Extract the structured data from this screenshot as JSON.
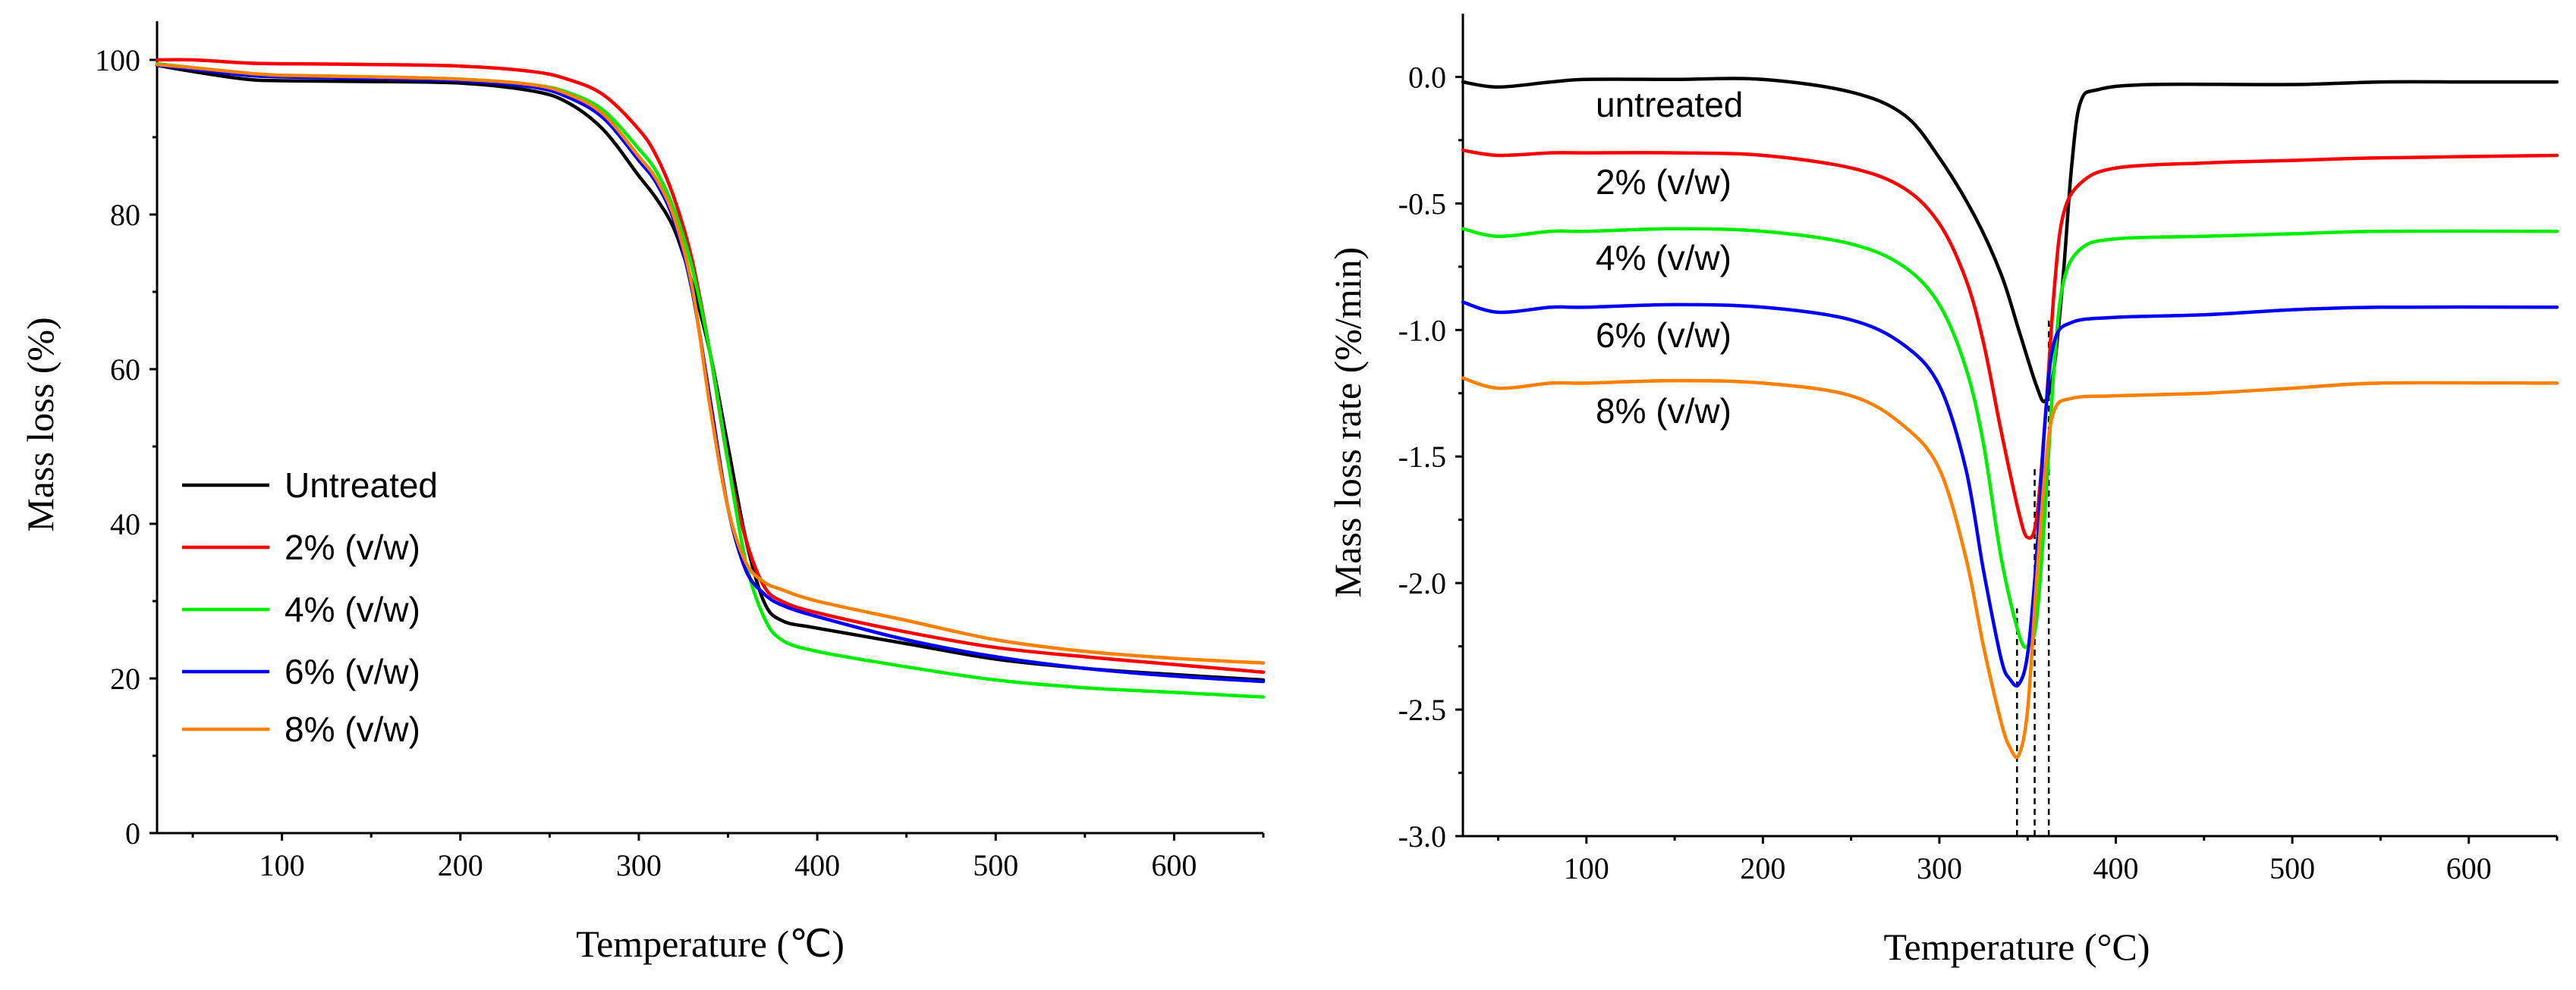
{
  "colors": {
    "untreated": "#000000",
    "c2": "#ff0000",
    "c4": "#00ee00",
    "c6": "#0000ff",
    "c8": "#ff8000"
  },
  "chart_data": [
    {
      "type": "line",
      "title": "",
      "xlabel": "Temperature (℃)",
      "ylabel": "Mass loss (%)",
      "xlim": [
        30,
        650
      ],
      "ylim": [
        0,
        105
      ],
      "x_ticks": [
        100,
        200,
        300,
        400,
        500,
        600
      ],
      "y_ticks": [
        0,
        20,
        40,
        60,
        80,
        100
      ],
      "grid": false,
      "legend_position": "lower-left",
      "series": [
        {
          "name": "Untreated",
          "color_key": "untreated",
          "x": [
            30,
            50,
            80,
            100,
            150,
            200,
            240,
            260,
            280,
            300,
            310,
            320,
            330,
            340,
            350,
            360,
            370,
            380,
            400,
            450,
            500,
            550,
            600,
            650
          ],
          "y": [
            99.3,
            98.5,
            97.5,
            97.3,
            97.2,
            97.0,
            96.0,
            94.5,
            91.0,
            85.0,
            82.0,
            78.0,
            71.0,
            62.0,
            50.0,
            38.0,
            30.0,
            27.5,
            26.5,
            24.5,
            22.5,
            21.3,
            20.5,
            19.8
          ]
        },
        {
          "name": "2% (v/w)",
          "color_key": "c2",
          "x": [
            30,
            50,
            80,
            100,
            150,
            200,
            240,
            260,
            280,
            300,
            310,
            320,
            330,
            340,
            350,
            360,
            370,
            380,
            400,
            450,
            500,
            550,
            600,
            650
          ],
          "y": [
            100.0,
            100.0,
            99.6,
            99.5,
            99.4,
            99.2,
            98.5,
            97.5,
            95.5,
            91.0,
            87.5,
            82.0,
            74.0,
            62.0,
            48.0,
            38.0,
            32.0,
            30.0,
            28.5,
            26.0,
            24.0,
            22.8,
            21.8,
            20.8
          ]
        },
        {
          "name": "4% (v/w)",
          "color_key": "c4",
          "x": [
            30,
            50,
            80,
            100,
            150,
            200,
            240,
            260,
            280,
            300,
            310,
            320,
            330,
            340,
            350,
            360,
            370,
            380,
            400,
            450,
            500,
            550,
            600,
            650
          ],
          "y": [
            99.5,
            99.0,
            98.2,
            98.0,
            97.8,
            97.5,
            96.8,
            95.8,
            93.5,
            88.5,
            85.5,
            80.5,
            73.0,
            62.0,
            48.0,
            35.0,
            28.0,
            25.0,
            23.5,
            21.5,
            19.8,
            18.8,
            18.2,
            17.6
          ]
        },
        {
          "name": "6% (v/w)",
          "color_key": "c6",
          "x": [
            30,
            50,
            80,
            100,
            150,
            200,
            240,
            260,
            280,
            300,
            310,
            320,
            330,
            340,
            350,
            360,
            370,
            380,
            400,
            450,
            500,
            550,
            600,
            650
          ],
          "y": [
            99.3,
            98.8,
            98.0,
            97.8,
            97.6,
            97.3,
            96.5,
            95.2,
            92.5,
            87.0,
            84.0,
            79.0,
            70.0,
            56.0,
            42.0,
            34.0,
            31.0,
            29.5,
            28.0,
            25.0,
            22.8,
            21.3,
            20.3,
            19.6
          ]
        },
        {
          "name": "8% (v/w)",
          "color_key": "c8",
          "x": [
            30,
            50,
            80,
            100,
            150,
            200,
            240,
            260,
            280,
            300,
            310,
            320,
            330,
            340,
            350,
            360,
            370,
            380,
            400,
            450,
            500,
            550,
            600,
            650
          ],
          "y": [
            99.4,
            99.0,
            98.3,
            98.0,
            97.8,
            97.5,
            96.8,
            95.6,
            93.0,
            87.5,
            84.5,
            79.5,
            70.5,
            55.0,
            42.0,
            35.0,
            32.5,
            31.5,
            30.0,
            27.5,
            25.0,
            23.5,
            22.6,
            22.0
          ]
        }
      ]
    },
    {
      "type": "line",
      "title": "",
      "xlabel": "Temperature (°C)",
      "ylabel": "Mass loss rate (%/min)",
      "xlim": [
        30,
        650
      ],
      "ylim": [
        -3.0,
        0.25
      ],
      "x_ticks": [
        100,
        200,
        300,
        400,
        500,
        600
      ],
      "y_ticks": [
        0.0,
        -0.5,
        -1.0,
        -1.5,
        -2.0,
        -2.5,
        -3.0
      ],
      "y_tick_labels": [
        "0.0",
        "-0.5",
        "-1.0",
        "-1.5",
        "-2.0",
        "-2.5",
        "-3.0"
      ],
      "grid": false,
      "legend_position": "inline labels",
      "series": [
        {
          "name": "untreated",
          "color_key": "untreated",
          "x": [
            30,
            50,
            80,
            100,
            150,
            200,
            250,
            280,
            300,
            320,
            335,
            345,
            355,
            360,
            365,
            370,
            375,
            380,
            390,
            420,
            500,
            550,
            600,
            650
          ],
          "y": [
            -0.02,
            -0.04,
            -0.02,
            -0.01,
            -0.01,
            -0.01,
            -0.06,
            -0.15,
            -0.32,
            -0.55,
            -0.78,
            -1.0,
            -1.22,
            -1.28,
            -1.15,
            -0.8,
            -0.35,
            -0.1,
            -0.05,
            -0.03,
            -0.03,
            -0.02,
            -0.02,
            -0.02
          ]
        },
        {
          "name": "2% (v/w)",
          "color_key": "c2",
          "x": [
            30,
            50,
            80,
            100,
            150,
            200,
            250,
            280,
            300,
            315,
            325,
            335,
            345,
            350,
            355,
            360,
            365,
            370,
            380,
            400,
            450,
            500,
            550,
            650
          ],
          "y": [
            -0.29,
            -0.31,
            -0.3,
            -0.3,
            -0.3,
            -0.31,
            -0.36,
            -0.44,
            -0.58,
            -0.8,
            -1.05,
            -1.4,
            -1.72,
            -1.82,
            -1.75,
            -1.35,
            -0.85,
            -0.55,
            -0.42,
            -0.36,
            -0.34,
            -0.33,
            -0.32,
            -0.31
          ]
        },
        {
          "name": "4% (v/w)",
          "color_key": "c4",
          "x": [
            30,
            50,
            80,
            100,
            150,
            200,
            250,
            280,
            300,
            315,
            325,
            335,
            345,
            350,
            355,
            360,
            365,
            370,
            380,
            400,
            450,
            500,
            550,
            650
          ],
          "y": [
            -0.6,
            -0.63,
            -0.61,
            -0.61,
            -0.6,
            -0.61,
            -0.66,
            -0.75,
            -0.9,
            -1.15,
            -1.45,
            -1.9,
            -2.2,
            -2.25,
            -2.15,
            -1.7,
            -1.15,
            -0.82,
            -0.68,
            -0.64,
            -0.63,
            -0.62,
            -0.61,
            -0.61
          ]
        },
        {
          "name": "6% (v/w)",
          "color_key": "c6",
          "x": [
            30,
            50,
            80,
            100,
            150,
            200,
            250,
            280,
            300,
            315,
            325,
            335,
            340,
            345,
            350,
            355,
            360,
            365,
            375,
            400,
            450,
            500,
            550,
            650
          ],
          "y": [
            -0.89,
            -0.93,
            -0.91,
            -0.91,
            -0.9,
            -0.91,
            -0.96,
            -1.06,
            -1.22,
            -1.55,
            -1.95,
            -2.3,
            -2.38,
            -2.4,
            -2.28,
            -1.9,
            -1.35,
            -1.05,
            -0.97,
            -0.95,
            -0.94,
            -0.92,
            -0.91,
            -0.91
          ]
        },
        {
          "name": "8% (v/w)",
          "color_key": "c8",
          "x": [
            30,
            50,
            80,
            100,
            150,
            200,
            250,
            280,
            300,
            315,
            325,
            335,
            340,
            345,
            350,
            355,
            360,
            365,
            375,
            400,
            450,
            500,
            550,
            650
          ],
          "y": [
            -1.19,
            -1.23,
            -1.21,
            -1.21,
            -1.2,
            -1.21,
            -1.26,
            -1.38,
            -1.55,
            -1.9,
            -2.25,
            -2.55,
            -2.65,
            -2.68,
            -2.5,
            -2.0,
            -1.55,
            -1.32,
            -1.27,
            -1.26,
            -1.25,
            -1.23,
            -1.21,
            -1.21
          ]
        }
      ],
      "peak_markers": {
        "x": [
          344,
          354,
          362
        ],
        "y_bottom": -3.0,
        "y_top": [
          -2.1,
          -1.55,
          -0.95
        ]
      }
    }
  ]
}
